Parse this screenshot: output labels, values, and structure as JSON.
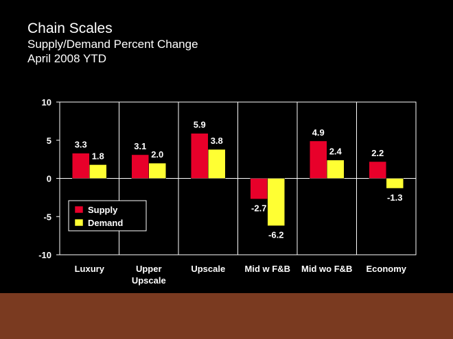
{
  "title": {
    "line1": "Chain Scales",
    "line2": "Supply/Demand Percent Change",
    "line3": "April 2008 YTD"
  },
  "chart_data": {
    "type": "bar",
    "categories": [
      [
        "Luxury"
      ],
      [
        "Upper",
        "Upscale"
      ],
      [
        "Upscale"
      ],
      [
        "Mid w F&B"
      ],
      [
        "Mid wo F&B"
      ],
      [
        "Economy"
      ]
    ],
    "series": [
      {
        "name": "Supply",
        "color": "#e8002a",
        "values": [
          3.3,
          3.1,
          5.9,
          -2.7,
          4.9,
          2.2
        ],
        "labels": [
          "3.3",
          "3.1",
          "5.9",
          "-2.7",
          "4.9",
          "2.2"
        ]
      },
      {
        "name": "Demand",
        "color": "#ffff33",
        "values": [
          1.8,
          2.0,
          3.8,
          -6.2,
          2.4,
          -1.3
        ],
        "labels": [
          "1.8",
          "2.0",
          "3.8",
          "-6.2",
          "2.4",
          "-1.3"
        ]
      }
    ],
    "yticks": [
      10,
      5,
      0,
      -5,
      -10
    ],
    "ylim": [
      -10,
      10
    ],
    "grid": "vertical-separators",
    "legend_position": "lower-left"
  },
  "colors": {
    "background": "#000000",
    "footer": "#7a3a20",
    "axis": "#ffffff"
  }
}
